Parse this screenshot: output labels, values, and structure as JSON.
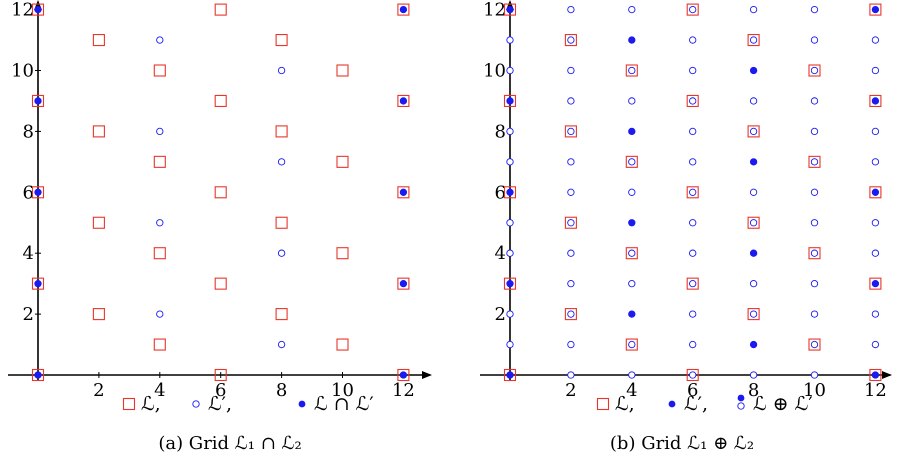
{
  "colors": {
    "red": "#e8362a",
    "blue": "#1b1bf0",
    "axis": "#000000"
  },
  "chart_data": [
    {
      "type": "scatter",
      "ticks": {
        "x": [
          "2",
          "4",
          "6",
          "8",
          "10",
          "12"
        ],
        "y": [
          "2",
          "4",
          "6",
          "8",
          "10",
          "12"
        ]
      },
      "xlim": [
        0,
        12.9
      ],
      "ylim": [
        0,
        12.2
      ],
      "series": [
        {
          "name": "ℒ,",
          "marker": "square-red",
          "points": [
            [
              0,
              0
            ],
            [
              0,
              3
            ],
            [
              0,
              6
            ],
            [
              0,
              9
            ],
            [
              0,
              12
            ],
            [
              2,
              2
            ],
            [
              2,
              5
            ],
            [
              2,
              8
            ],
            [
              2,
              11
            ],
            [
              4,
              1
            ],
            [
              4,
              4
            ],
            [
              4,
              7
            ],
            [
              4,
              10
            ],
            [
              6,
              0
            ],
            [
              6,
              3
            ],
            [
              6,
              6
            ],
            [
              6,
              9
            ],
            [
              6,
              12
            ],
            [
              8,
              2
            ],
            [
              8,
              5
            ],
            [
              8,
              8
            ],
            [
              8,
              11
            ],
            [
              10,
              1
            ],
            [
              10,
              4
            ],
            [
              10,
              7
            ],
            [
              10,
              10
            ],
            [
              12,
              0
            ],
            [
              12,
              3
            ],
            [
              12,
              6
            ],
            [
              12,
              9
            ],
            [
              12,
              12
            ]
          ]
        },
        {
          "name": "ℒ′,",
          "marker": "circle-open-blue",
          "points": [
            [
              0,
              0
            ],
            [
              0,
              3
            ],
            [
              0,
              6
            ],
            [
              0,
              9
            ],
            [
              0,
              12
            ],
            [
              4,
              2
            ],
            [
              4,
              5
            ],
            [
              4,
              8
            ],
            [
              4,
              11
            ],
            [
              8,
              1
            ],
            [
              8,
              4
            ],
            [
              8,
              7
            ],
            [
              8,
              10
            ],
            [
              12,
              0
            ],
            [
              12,
              3
            ],
            [
              12,
              6
            ],
            [
              12,
              9
            ],
            [
              12,
              12
            ]
          ]
        },
        {
          "name": "ℒ ∩ ℒ′",
          "marker": "dot-blue",
          "points": [
            [
              0,
              0
            ],
            [
              0,
              3
            ],
            [
              0,
              6
            ],
            [
              0,
              9
            ],
            [
              0,
              12
            ],
            [
              12,
              0
            ],
            [
              12,
              3
            ],
            [
              12,
              6
            ],
            [
              12,
              9
            ],
            [
              12,
              12
            ]
          ]
        }
      ],
      "legend": [
        "ℒ,",
        "ℒ′,",
        "ℒ ∩ ℒ′"
      ],
      "caption": "(a) Grid ℒ₁ ∩ ℒ₂"
    },
    {
      "type": "scatter",
      "ticks": {
        "x": [
          "2",
          "4",
          "6",
          "8",
          "10",
          "12"
        ],
        "y": [
          "2",
          "4",
          "6",
          "8",
          "10",
          "12"
        ]
      },
      "xlim": [
        0,
        12.9
      ],
      "ylim": [
        0,
        12.2
      ],
      "series": [
        {
          "name": "ℒ,",
          "marker": "square-red",
          "points": [
            [
              0,
              0
            ],
            [
              0,
              3
            ],
            [
              0,
              6
            ],
            [
              0,
              9
            ],
            [
              0,
              12
            ],
            [
              2,
              2
            ],
            [
              2,
              5
            ],
            [
              2,
              8
            ],
            [
              2,
              11
            ],
            [
              4,
              1
            ],
            [
              4,
              4
            ],
            [
              4,
              7
            ],
            [
              4,
              10
            ],
            [
              6,
              0
            ],
            [
              6,
              3
            ],
            [
              6,
              6
            ],
            [
              6,
              9
            ],
            [
              6,
              12
            ],
            [
              8,
              2
            ],
            [
              8,
              5
            ],
            [
              8,
              8
            ],
            [
              8,
              11
            ],
            [
              10,
              1
            ],
            [
              10,
              4
            ],
            [
              10,
              7
            ],
            [
              10,
              10
            ],
            [
              12,
              0
            ],
            [
              12,
              3
            ],
            [
              12,
              6
            ],
            [
              12,
              9
            ],
            [
              12,
              12
            ]
          ]
        },
        {
          "name": "ℒ′,",
          "marker": "dot-blue",
          "points": [
            [
              0,
              0
            ],
            [
              0,
              3
            ],
            [
              0,
              6
            ],
            [
              0,
              9
            ],
            [
              0,
              12
            ],
            [
              4,
              2
            ],
            [
              4,
              5
            ],
            [
              4,
              8
            ],
            [
              4,
              11
            ],
            [
              8,
              1
            ],
            [
              8,
              4
            ],
            [
              8,
              7
            ],
            [
              8,
              10
            ],
            [
              12,
              0
            ],
            [
              12,
              3
            ],
            [
              12,
              6
            ],
            [
              12,
              9
            ],
            [
              12,
              12
            ]
          ]
        },
        {
          "name": "ℒ ⊕ ℒ′",
          "marker": "circle-open-blue",
          "points": "all integer points with x in {0,2,4,6,8,10,12} and y in 0..12"
        }
      ],
      "legend": [
        "ℒ,",
        "ℒ′,",
        "ℒ ⊕ ℒ′"
      ],
      "caption": "(b) Grid ℒ₁ ⊕ ℒ₂"
    }
  ]
}
